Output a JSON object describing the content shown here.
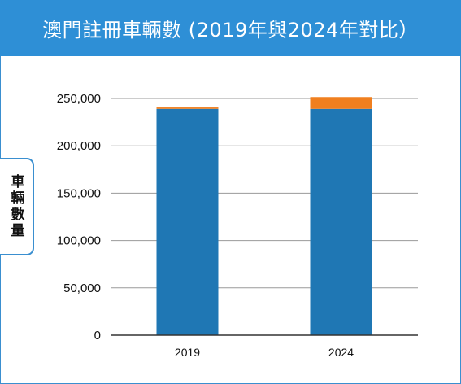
{
  "header": {
    "title": "澳門註冊車輛數 (2019年與2024年對比）"
  },
  "chart_data": {
    "type": "bar",
    "stacked": true,
    "title": "澳門註冊車輛數 (2019年與2024年對比）",
    "ylabel": "車輛數量",
    "xlabel": "",
    "categories": [
      "2019",
      "2024"
    ],
    "series": [
      {
        "values": [
          239000,
          239000
        ],
        "color": "#1f77b4"
      },
      {
        "values": [
          1500,
          12500
        ],
        "color": "#f07f1f"
      }
    ],
    "ylim": [
      0,
      250000
    ],
    "yticks": [
      0,
      50000,
      100000,
      150000,
      200000,
      250000
    ],
    "ytick_labels": [
      "0",
      "50,000",
      "100,000",
      "150,000",
      "200,000",
      "250,000"
    ],
    "grid": true,
    "legend": "none"
  }
}
